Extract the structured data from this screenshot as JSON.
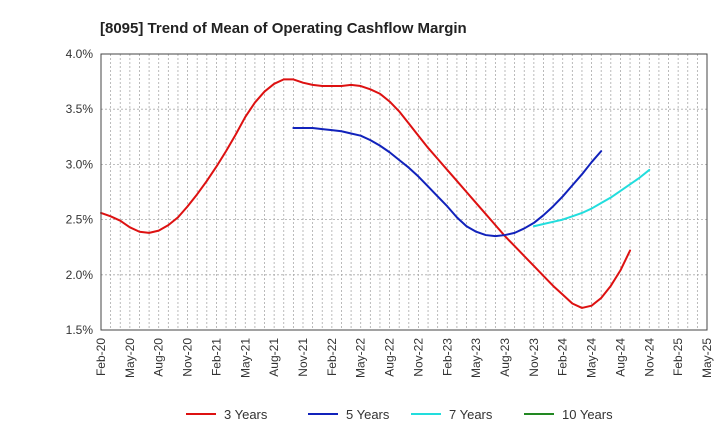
{
  "chart_data": {
    "type": "line",
    "title": "[8095]  Trend of Mean of Operating Cashflow Margin",
    "xlabel": "",
    "ylabel": "",
    "ylim": [
      1.5,
      4.0
    ],
    "yticks": [
      1.5,
      2.0,
      2.5,
      3.0,
      3.5,
      4.0
    ],
    "ytick_labels": [
      "1.5%",
      "2.0%",
      "2.5%",
      "3.0%",
      "3.5%",
      "4.0%"
    ],
    "x_start": "Feb-20",
    "x_count": 64,
    "x_tick_step": 3,
    "x_tick_labels": [
      "Feb-20",
      "May-20",
      "Aug-20",
      "Nov-20",
      "Feb-21",
      "May-21",
      "Aug-21",
      "Nov-21",
      "Feb-22",
      "May-22",
      "Aug-22",
      "Nov-22",
      "Feb-23",
      "May-23",
      "Aug-23",
      "Nov-23",
      "Feb-24",
      "May-24",
      "Aug-24",
      "Nov-24",
      "Feb-25",
      "May-25"
    ],
    "grid": true,
    "legend_position": "bottom",
    "series": [
      {
        "name": "3 Years",
        "color": "#dd1111",
        "start_index": 0,
        "values": [
          2.56,
          2.53,
          2.49,
          2.43,
          2.39,
          2.38,
          2.4,
          2.45,
          2.52,
          2.62,
          2.73,
          2.85,
          2.98,
          3.12,
          3.27,
          3.43,
          3.56,
          3.66,
          3.73,
          3.77,
          3.77,
          3.74,
          3.72,
          3.71,
          3.71,
          3.71,
          3.72,
          3.71,
          3.68,
          3.64,
          3.57,
          3.48,
          3.37,
          3.26,
          3.15,
          3.05,
          2.95,
          2.85,
          2.75,
          2.65,
          2.55,
          2.45,
          2.35,
          2.26,
          2.17,
          2.08,
          1.99,
          1.9,
          1.82,
          1.74,
          1.7,
          1.72,
          1.79,
          1.9,
          2.04,
          2.22
        ]
      },
      {
        "name": "5 Years",
        "color": "#1122bb",
        "start_index": 20,
        "values": [
          3.33,
          3.33,
          3.33,
          3.32,
          3.31,
          3.3,
          3.28,
          3.26,
          3.22,
          3.17,
          3.11,
          3.04,
          2.97,
          2.89,
          2.8,
          2.71,
          2.62,
          2.52,
          2.44,
          2.39,
          2.36,
          2.35,
          2.36,
          2.38,
          2.42,
          2.47,
          2.54,
          2.62,
          2.71,
          2.81,
          2.91,
          3.02,
          3.12
        ]
      },
      {
        "name": "7 Years",
        "color": "#22dddd",
        "start_index": 45,
        "values": [
          2.44,
          2.46,
          2.48,
          2.5,
          2.53,
          2.56,
          2.6,
          2.65,
          2.7,
          2.76,
          2.82,
          2.88,
          2.95
        ]
      },
      {
        "name": "10 Years",
        "color": "#228822",
        "start_index": 0,
        "values": []
      }
    ]
  }
}
